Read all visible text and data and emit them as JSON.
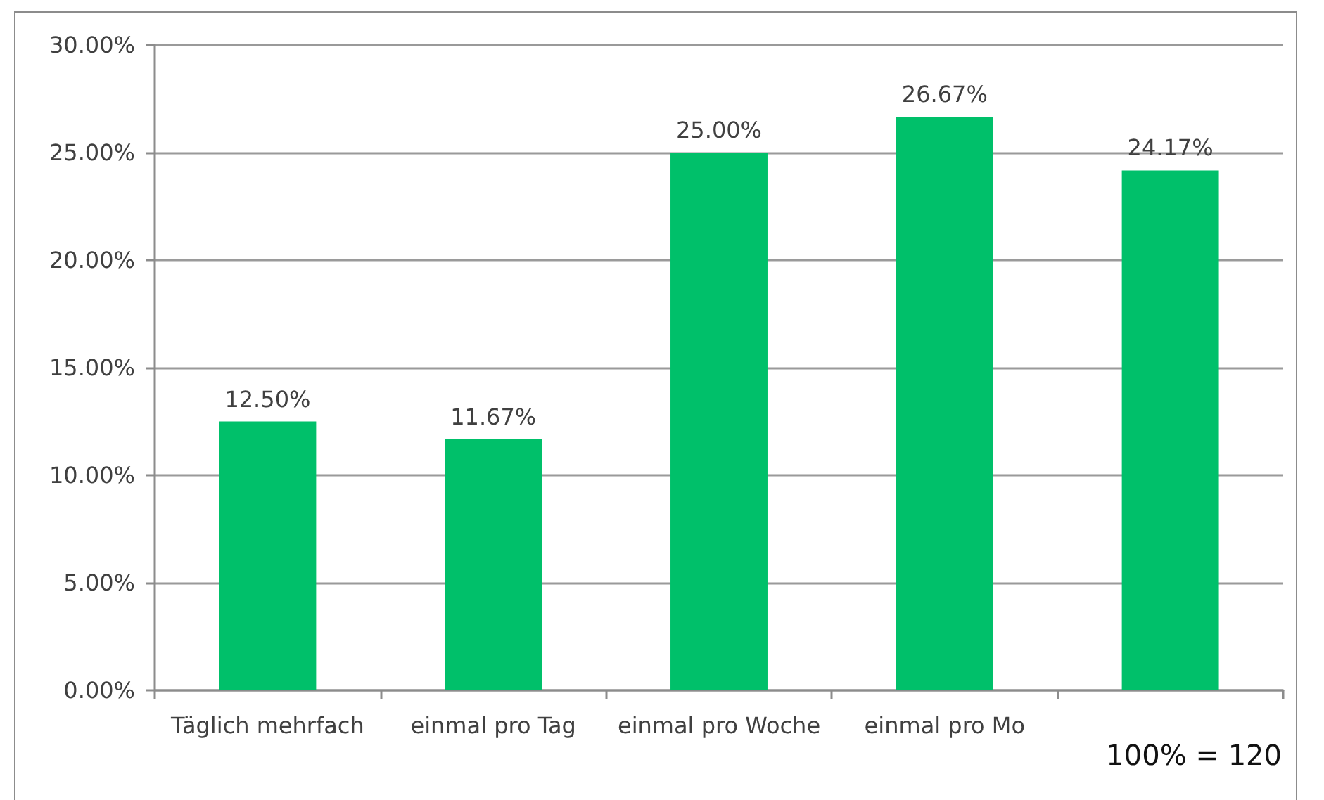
{
  "chart_data": {
    "type": "bar",
    "categories": [
      "Täglich mehrfach",
      "einmal pro Tag",
      "einmal pro Woche",
      "einmal pro Mo",
      null
    ],
    "values": [
      12.5,
      11.67,
      25,
      26.67,
      24.17
    ],
    "color": "#00c06a",
    "value_labels": [
      "12.50%",
      "11.67%",
      "25.00%",
      "26.67%",
      "24.17%"
    ],
    "ylim": [
      0,
      30
    ],
    "yticks": [
      {
        "value": 0,
        "label": "0.00%"
      },
      {
        "value": 5,
        "label": "5.00%"
      },
      {
        "value": 10,
        "label": "10.00%"
      },
      {
        "value": 15,
        "label": "15.00%"
      },
      {
        "value": 20,
        "label": "20.00%"
      },
      {
        "value": 25,
        "label": "25.00%"
      },
      {
        "value": 30,
        "label": "30.00%"
      }
    ],
    "grid": "y",
    "annotations": [
      "100% = 120"
    ]
  }
}
